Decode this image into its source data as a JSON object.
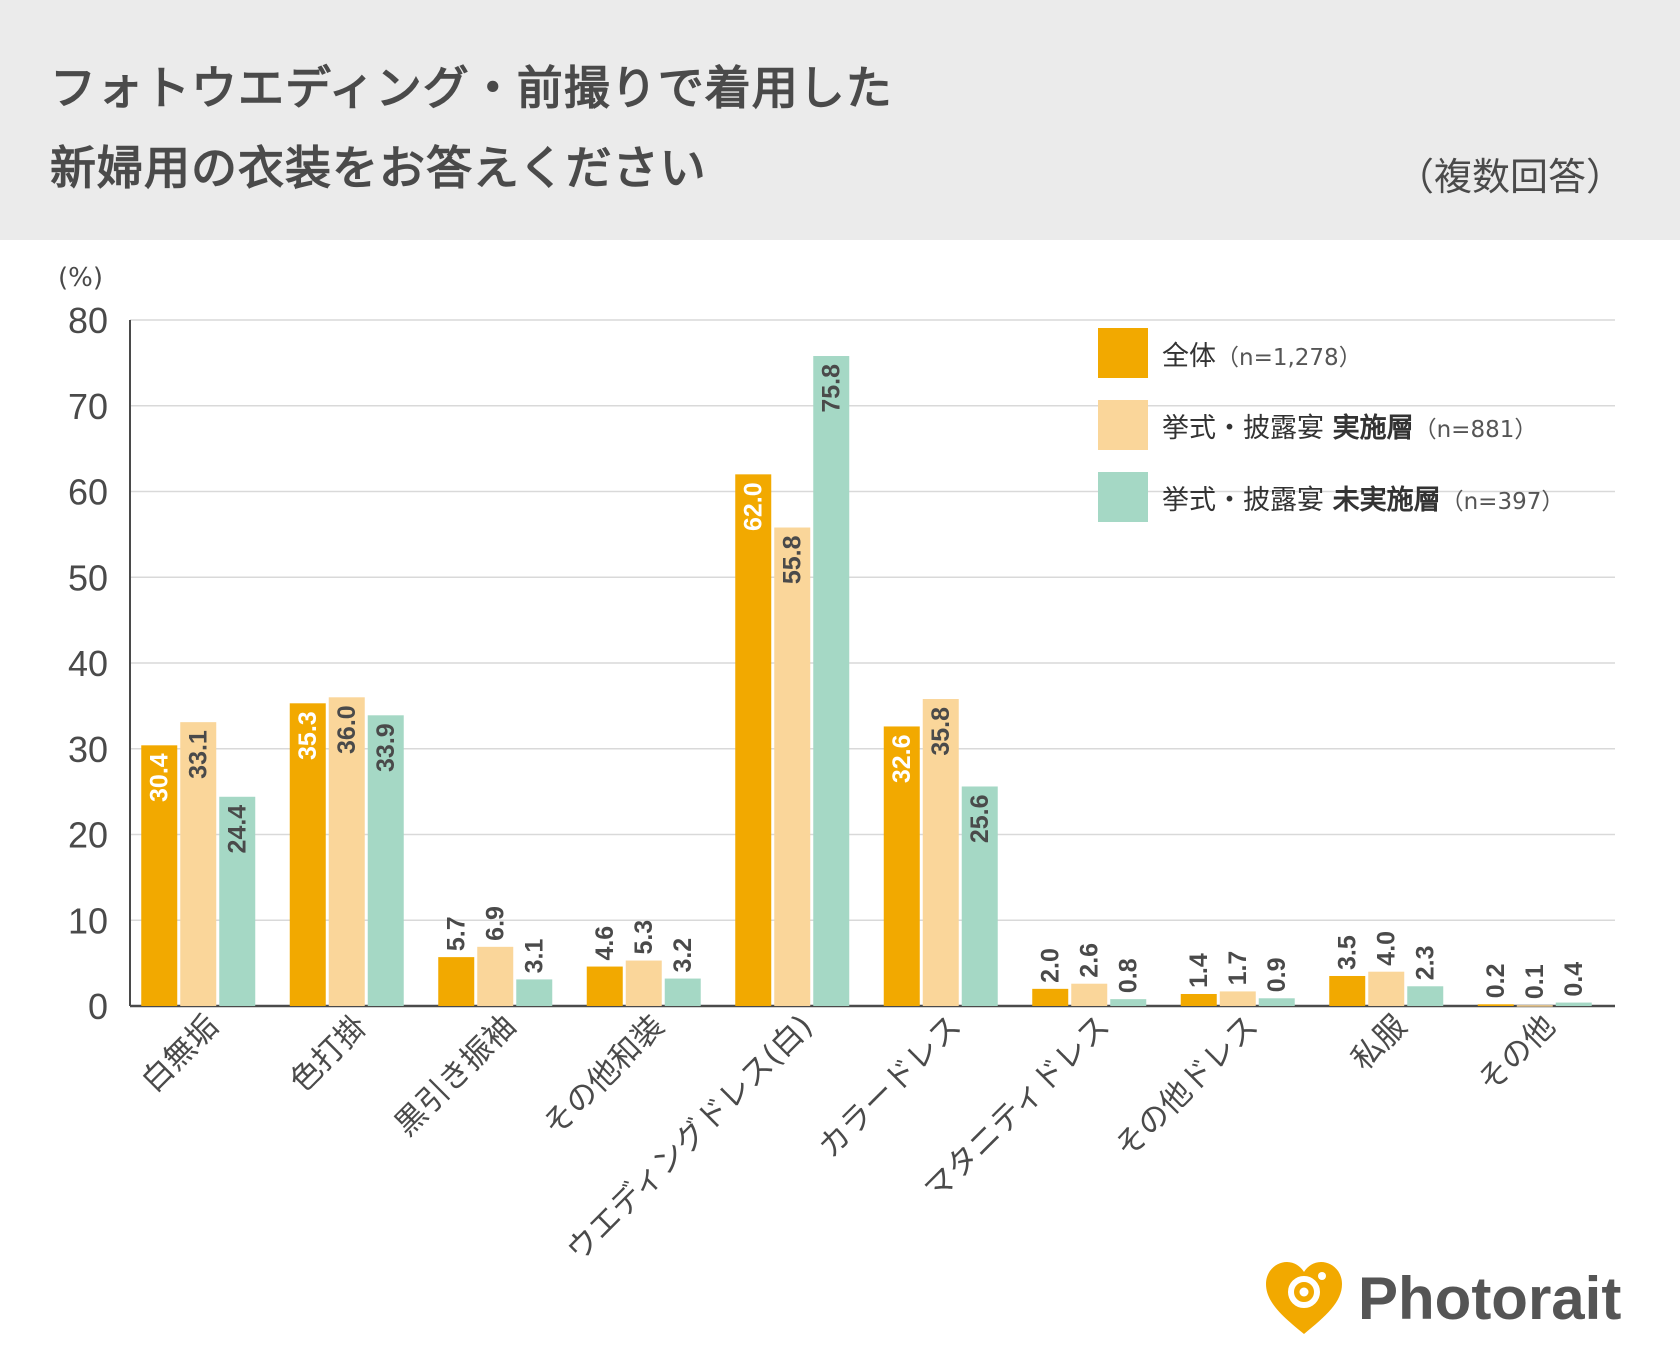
{
  "header": {
    "title_line1": "フォトウエディング・前撮りで着用した",
    "title_line2": "新婦用の衣装をお答えください",
    "subtitle": "（複数回答）"
  },
  "colors": {
    "s0": "#F2A900",
    "s1": "#FAD69A",
    "s2": "#A5D8C5",
    "grid": "#d9d9d9",
    "axis": "#4a4a4a",
    "header_bg": "#ebebeb",
    "brand": "#F2A900"
  },
  "chart_data": {
    "type": "bar",
    "unit_label": "(%)",
    "ylim": [
      0,
      80
    ],
    "yticks": [
      0,
      10,
      20,
      30,
      40,
      50,
      60,
      70,
      80
    ],
    "grid": true,
    "legend_position": "top-right",
    "categories": [
      "白無垢",
      "色打掛",
      "黒引き振袖",
      "その他和装",
      "ウエディングドレス(白)",
      "カラードレス",
      "マタニティドレス",
      "その他ドレス",
      "私服",
      "その他"
    ],
    "series": [
      {
        "name": "全体",
        "name_bold": "",
        "n": "（n=1,278）",
        "values": [
          30.4,
          35.3,
          5.7,
          4.6,
          62.0,
          32.6,
          2.0,
          1.4,
          3.5,
          0.2
        ],
        "labels": [
          "30.4",
          "35.3",
          "5.7",
          "4.6",
          "62.0",
          "32.6",
          "2.0",
          "1.4",
          "3.5",
          "0.2"
        ]
      },
      {
        "name": "挙式・披露宴 ",
        "name_bold": "実施層",
        "n": "（n=881）",
        "values": [
          33.1,
          36.0,
          6.9,
          5.3,
          55.8,
          35.8,
          2.6,
          1.7,
          4.0,
          0.1
        ],
        "labels": [
          "33.1",
          "36.0",
          "6.9",
          "5.3",
          "55.8",
          "35.8",
          "2.6",
          "1.7",
          "4.0",
          "0.1"
        ]
      },
      {
        "name": "挙式・披露宴 ",
        "name_bold": "未実施層",
        "n": "（n=397）",
        "values": [
          24.4,
          33.9,
          3.1,
          3.2,
          75.8,
          25.6,
          0.8,
          0.9,
          2.3,
          0.4
        ],
        "labels": [
          "24.4",
          "33.9",
          "3.1",
          "3.2",
          "75.8",
          "25.6",
          "0.8",
          "0.9",
          "2.3",
          "0.4"
        ]
      }
    ]
  },
  "brand": {
    "name": "Photorait"
  }
}
